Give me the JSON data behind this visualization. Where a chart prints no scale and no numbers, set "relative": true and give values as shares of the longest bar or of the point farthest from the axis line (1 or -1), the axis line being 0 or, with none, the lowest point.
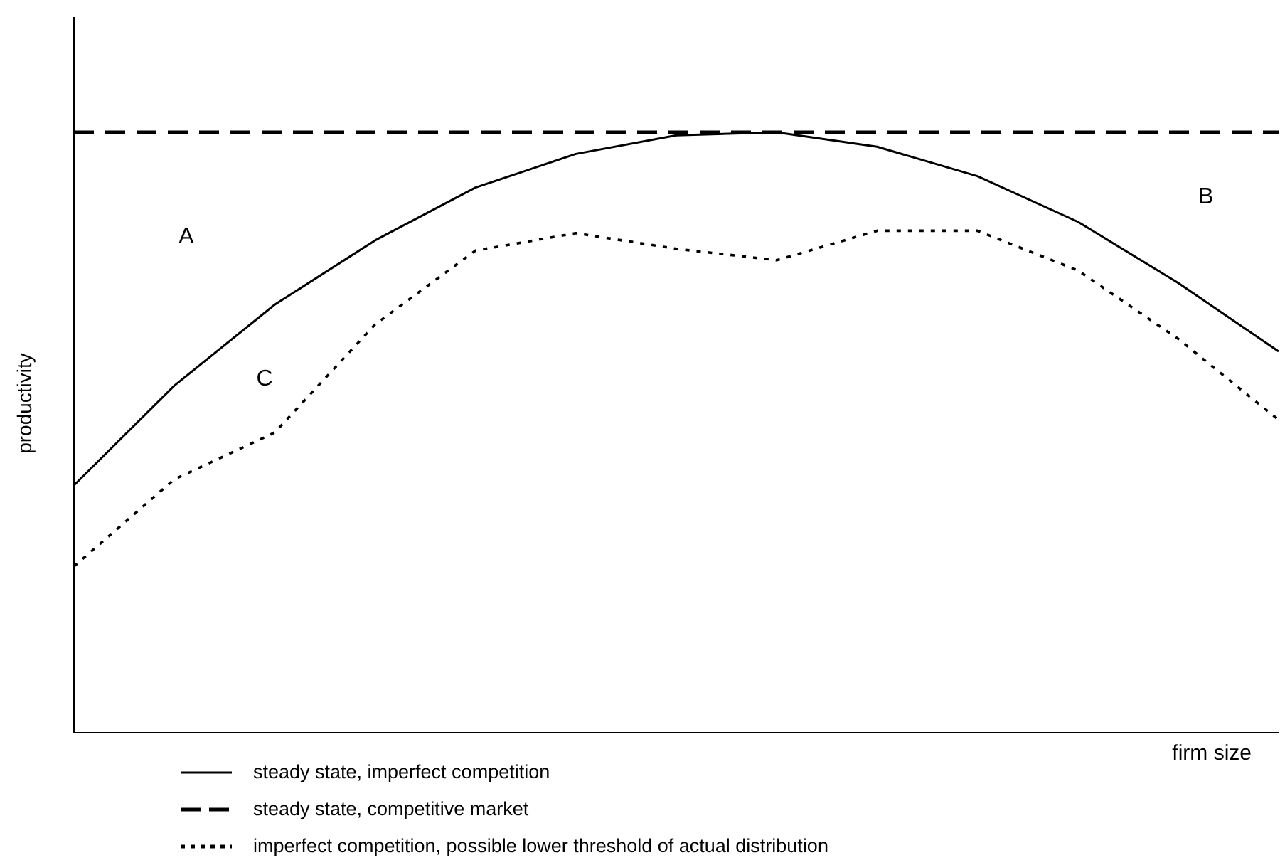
{
  "chart_data": {
    "type": "line",
    "relative": true,
    "xlabel": "firm size",
    "ylabel": "productivity",
    "categories": [
      null,
      null,
      null,
      null,
      null,
      null,
      null,
      null,
      null,
      null,
      null,
      null,
      null
    ],
    "series": [
      {
        "name": "steady state, imperfect competition",
        "color": "#000000",
        "line_style": "solid",
        "values": [
          0.412,
          0.578,
          0.713,
          0.82,
          0.908,
          0.964,
          0.995,
          1,
          0.976,
          0.927,
          0.851,
          0.749,
          0.635
        ]
      },
      {
        "name": "steady state, competitive market",
        "color": "#000000",
        "line_style": "dashed",
        "values": [
          1,
          1,
          1,
          1,
          1,
          1,
          1,
          1,
          1,
          1,
          1,
          1,
          1
        ]
      },
      {
        "name": "imperfect competition, possible lower threshold of  actual distribution",
        "color": "#000000",
        "line_style": "dotted",
        "values": [
          0.277,
          0.422,
          0.5,
          0.68,
          0.803,
          0.832,
          0.806,
          0.787,
          0.836,
          0.836,
          0.77,
          0.656,
          0.521
        ]
      }
    ],
    "annotations": [
      "A",
      "B",
      "C"
    ],
    "legend": "bottom",
    "marker": "none",
    "grid": false
  }
}
